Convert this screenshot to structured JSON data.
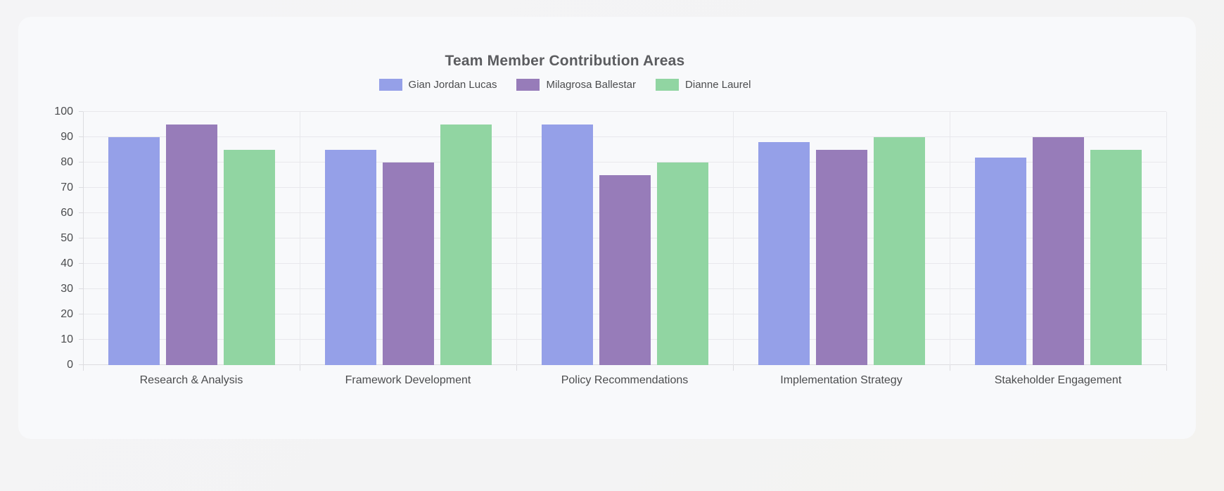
{
  "chart_data": {
    "type": "bar",
    "title": "Team Member Contribution Areas",
    "categories": [
      "Research & Analysis",
      "Framework Development",
      "Policy Recommendations",
      "Implementation Strategy",
      "Stakeholder Engagement"
    ],
    "series": [
      {
        "name": "Gian Jordan Lucas",
        "color": "#95a0e8",
        "values": [
          90,
          85,
          95,
          88,
          82
        ]
      },
      {
        "name": "Milagrosa Ballestar",
        "color": "#977cb9",
        "values": [
          95,
          80,
          75,
          85,
          90
        ]
      },
      {
        "name": "Dianne Laurel",
        "color": "#91d5a2",
        "values": [
          85,
          95,
          80,
          90,
          85
        ]
      }
    ],
    "ylim": [
      0,
      100
    ],
    "yticks": [
      0,
      10,
      20,
      30,
      40,
      50,
      60,
      70,
      80,
      90,
      100
    ],
    "grid": true,
    "legend_position": "top"
  },
  "theme": {
    "page_background": "#f3f3f4",
    "card_background": "#f8f9fb",
    "grid_color": "#e8e8ec",
    "axis_color": "#dcdce0",
    "title_color": "#5b5c5f",
    "tick_label_color": "#4b4c4e",
    "legend_label_color": "#4b4c4e"
  }
}
